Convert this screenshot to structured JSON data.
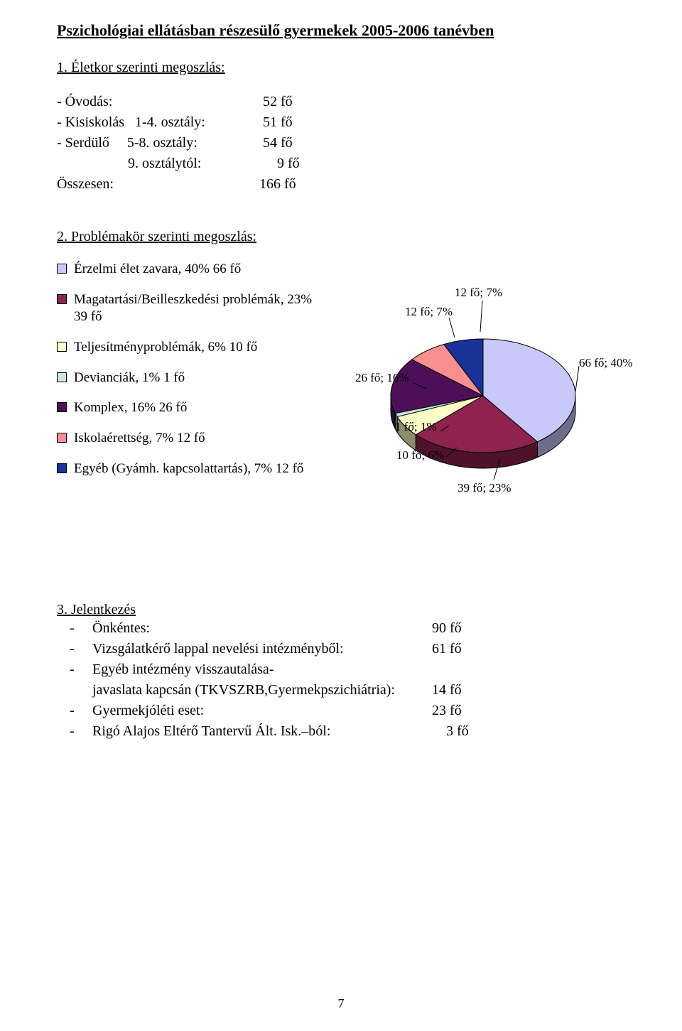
{
  "title": "Pszichológiai ellátásban részesülő gyermekek 2005-2006 tanévben",
  "section1": {
    "heading": "1. Életkor szerinti megoszlás:",
    "rows": [
      {
        "label": "- Óvodás:",
        "value": "52 fő"
      },
      {
        "label": "- Kisiskolás   1-4. osztály:",
        "value": "51 fő"
      },
      {
        "label": "- Serdülő     5-8. osztály:",
        "value": "54 fő"
      },
      {
        "label": "                    9. osztálytól:",
        "value": "  9 fő"
      },
      {
        "label": "Összesen:",
        "value": "166 fő"
      }
    ]
  },
  "section2": {
    "heading": "2. Problémakör szerinti megoszlás:",
    "legend": [
      {
        "color": "#c8c8fb",
        "label": "Érzelmi élet zavara, 40% 66 fő"
      },
      {
        "color": "#8e244e",
        "label_l1": "Magatartási/Beilleszkedési problémák, 23%",
        "label_l2": "39 fő"
      },
      {
        "color": "#fefec8",
        "label": "Teljesítményproblémák, 6% 10 fő"
      },
      {
        "color": "#cae7e7",
        "label": "Devianciák, 1% 1 fő"
      },
      {
        "color": "#4d1058",
        "label": "Komplex, 16% 26 fő"
      },
      {
        "color": "#f98f8f",
        "label": "Iskolaérettség, 7% 12 fő"
      },
      {
        "color": "#1a3399",
        "label": "Egyéb (Gyámh. kapcsolattartás), 7% 12 fő"
      }
    ],
    "pie_labels": {
      "p40": "66 fő; 40%",
      "p23": "39 fő; 23%",
      "p6": "10 fő; 6%",
      "p1": "1 fő; 1%",
      "p16": "26 fő; 16%",
      "p7a": "12 fő; 7%",
      "p7b": "12 fő; 7%"
    },
    "chart": {
      "type": "pie-3d",
      "background_color": "#ffffff",
      "stroke_color": "#000000",
      "label_fontsize": 17,
      "legend_fontsize": 19,
      "slices": [
        {
          "name": "Érzelmi élet zavara",
          "count": 66,
          "pct": 40,
          "color": "#c8c8fb"
        },
        {
          "name": "Magatartási/Beilleszkedési problémák",
          "count": 39,
          "pct": 23,
          "color": "#8e244e"
        },
        {
          "name": "Teljesítményproblémák",
          "count": 10,
          "pct": 6,
          "color": "#fefec8"
        },
        {
          "name": "Devianciák",
          "count": 1,
          "pct": 1,
          "color": "#cae7e7"
        },
        {
          "name": "Komplex",
          "count": 26,
          "pct": 16,
          "color": "#4d1058"
        },
        {
          "name": "Iskolaérettség",
          "count": 12,
          "pct": 7,
          "color": "#f98f8f"
        },
        {
          "name": "Egyéb (Gyámh. kapcsolattartás)",
          "count": 12,
          "pct": 7,
          "color": "#1a3399"
        }
      ]
    }
  },
  "section3": {
    "heading": "3. Jelentkezés",
    "rows": [
      {
        "dash": "-",
        "label": "Önkéntes:",
        "value": "90 fő",
        "labelw": 478
      },
      {
        "dash": "-",
        "label": "Vizsgálatkérő lappal nevelési intézményből:",
        "value": "61 fő",
        "labelw": 478
      },
      {
        "dash": "-",
        "label": "Egyéb intézmény visszautalása-",
        "value": ""
      },
      {
        "dash": "",
        "label": "javaslata kapcsán (TKVSZRB,Gyermekpszichiátria):",
        "value": "14 fő",
        "labelw": 478
      },
      {
        "dash": "-",
        "label": "Gyermekjóléti eset:",
        "value": "23 fő",
        "labelw": 478
      },
      {
        "dash": "-",
        "label": "Rigó Alajos Eltérő Tantervű Ált. Isk.–ból:",
        "value": "  3 fő",
        "labelw": 478,
        "preval": "  "
      }
    ]
  },
  "page_number": "7"
}
